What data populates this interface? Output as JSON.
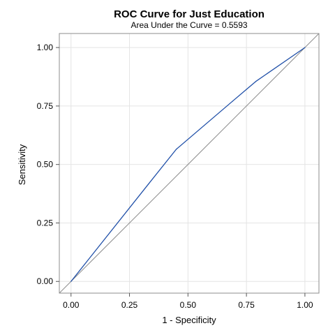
{
  "chart_data": {
    "type": "line",
    "title": "ROC Curve for Just Education",
    "subtitle": "Area Under the Curve = 0.5593",
    "xlabel": "1 - Specificity",
    "ylabel": "Sensitivity",
    "xlim": [
      -0.05,
      1.06
    ],
    "ylim": [
      -0.05,
      1.06
    ],
    "xticks": [
      0.0,
      0.25,
      0.5,
      0.75,
      1.0
    ],
    "yticks": [
      0.0,
      0.25,
      0.5,
      0.75,
      1.0
    ],
    "xtick_labels": [
      "0.00",
      "0.25",
      "0.50",
      "0.75",
      "1.00"
    ],
    "ytick_labels": [
      "0.00",
      "0.25",
      "0.50",
      "0.75",
      "1.00"
    ],
    "grid": true,
    "series": [
      {
        "color": "#1f4fa8",
        "x": [
          0.0,
          0.33,
          0.45,
          0.69,
          0.79,
          1.0
        ],
        "y": [
          0.0,
          0.415,
          0.565,
          0.77,
          0.855,
          1.0
        ]
      }
    ],
    "reference_line": {
      "color": "#8c8c8c",
      "x": [
        -0.05,
        1.06
      ],
      "y": [
        -0.05,
        1.06
      ]
    },
    "colors": {
      "grid": "#e4e4e4",
      "frame": "#8c8c8c",
      "axis_ticks": "#555555"
    }
  }
}
